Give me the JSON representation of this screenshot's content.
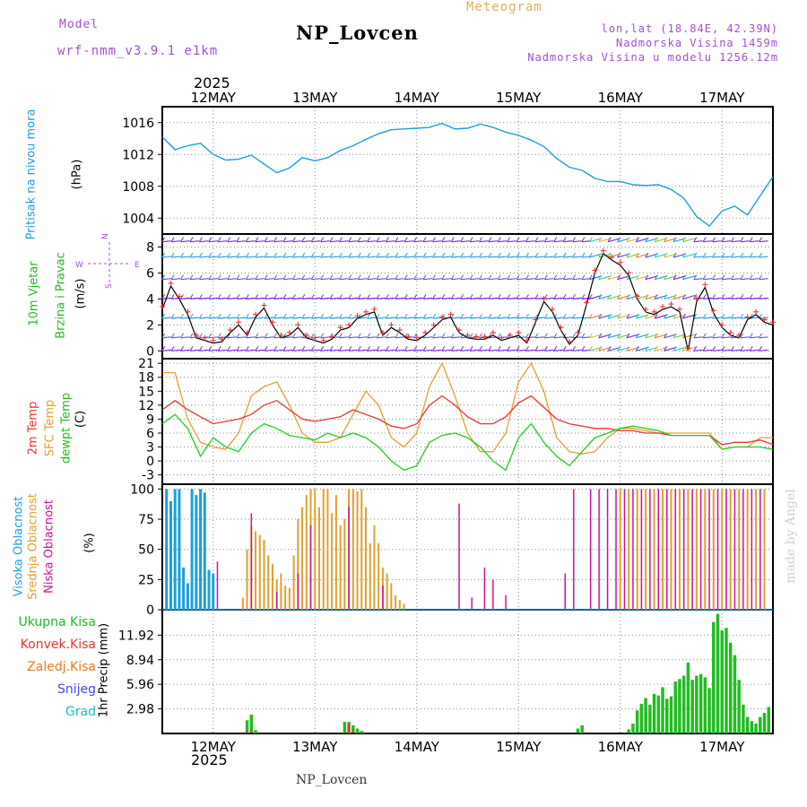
{
  "header": {
    "model_label": "Model",
    "model_name": "wrf-nmm_v3.9.1 e1km",
    "title": "NP_Lovcen",
    "meteogram_label": "Meteogram",
    "coords": "lon,lat (18.84E, 42.39N)",
    "altitude": "Nadmorska Visina 1459m",
    "model_altitude": "Nadmorska Visina u modelu 1256.12m",
    "year_top": "2025",
    "year_bottom": "2025",
    "footer_name": "NP_Lovcen",
    "watermark": "made by Angel"
  },
  "colors": {
    "pressure": "#1a9fe0",
    "wind_label": "#22bb22",
    "temp2m": "#ee3333",
    "sfc": "#e0a030",
    "dewpt": "#22cc22",
    "high_cloud": "#1a9fe0",
    "mid_cloud": "#e0a030",
    "low_cloud": "#cc1199",
    "total_precip": "#22bb22",
    "conv_precip": "#ee3333",
    "frz_precip": "#ee7722",
    "snow": "#4444ee",
    "hail": "#22bbbb",
    "purple_text": "#a050d0",
    "orange_text": "#e0b060"
  },
  "chart_data": [
    {
      "type": "line",
      "panel": "pressure",
      "ylabel_main": "Pritisak na nivou mora",
      "unit": "(hPa)",
      "ylim": [
        1002,
        1018
      ],
      "yticks": [
        1004,
        1008,
        1012,
        1016
      ],
      "xlim": [
        0,
        144
      ],
      "x_tick_labels": [
        "12MAY",
        "13MAY",
        "14MAY",
        "15MAY",
        "16MAY",
        "17MAY"
      ],
      "x_tick_hours": [
        12,
        36,
        60,
        84,
        108,
        132
      ],
      "series": [
        {
          "key": "pressure",
          "x": [
            0,
            3,
            6,
            9,
            12,
            15,
            18,
            21,
            24,
            27,
            30,
            33,
            36,
            39,
            42,
            45,
            48,
            51,
            54,
            57,
            60,
            63,
            66,
            69,
            72,
            75,
            78,
            81,
            84,
            87,
            90,
            93,
            96,
            99,
            102,
            105,
            108,
            111,
            114,
            117,
            120,
            123,
            126,
            129,
            132,
            135,
            138,
            141,
            144
          ],
          "values": [
            1014.2,
            1012.6,
            1013.1,
            1013.4,
            1012.0,
            1011.3,
            1011.4,
            1011.9,
            1010.8,
            1009.7,
            1010.3,
            1011.6,
            1011.2,
            1011.6,
            1012.5,
            1013.1,
            1013.9,
            1014.6,
            1015.1,
            1015.2,
            1015.3,
            1015.4,
            1015.9,
            1015.2,
            1015.3,
            1015.8,
            1015.4,
            1014.8,
            1014.4,
            1013.8,
            1013.0,
            1011.5,
            1010.4,
            1010.0,
            1009.0,
            1008.6,
            1008.6,
            1008.2,
            1008.1,
            1008.2,
            1007.6,
            1006.5,
            1004.2,
            1003.0,
            1004.9,
            1005.5,
            1004.4,
            1006.8,
            1009.2
          ]
        }
      ]
    },
    {
      "type": "line",
      "panel": "wind",
      "ylabel_main": "10m Vjetar",
      "ylabel_sub": "Brzina i Pravac",
      "unit": "(m/s)",
      "compass": [
        "N",
        "W",
        "E",
        "S"
      ],
      "ylim": [
        -0.6,
        9
      ],
      "yticks": [
        0,
        2,
        4,
        6,
        8
      ],
      "xlim": [
        0,
        144
      ],
      "barb_rows": [
        0,
        1,
        2.5,
        4,
        5.5,
        7.2,
        8.4
      ],
      "series": [
        {
          "key": "speed",
          "x": [
            0,
            2,
            4,
            6,
            8,
            10,
            12,
            14,
            16,
            18,
            20,
            22,
            24,
            26,
            28,
            30,
            32,
            34,
            36,
            38,
            40,
            42,
            44,
            46,
            48,
            50,
            52,
            54,
            56,
            58,
            60,
            62,
            64,
            66,
            68,
            70,
            72,
            74,
            76,
            78,
            80,
            82,
            84,
            86,
            88,
            90,
            92,
            94,
            96,
            98,
            100,
            102,
            104,
            106,
            108,
            110,
            112,
            114,
            116,
            118,
            120,
            122,
            124,
            126,
            128,
            130,
            132,
            134,
            136,
            138,
            140,
            142,
            144
          ],
          "values": [
            3.2,
            5.0,
            4.0,
            2.8,
            1.0,
            0.8,
            0.6,
            0.7,
            1.4,
            2.0,
            1.2,
            2.6,
            3.3,
            2.0,
            1.0,
            1.2,
            1.8,
            1.0,
            0.8,
            0.6,
            0.9,
            1.6,
            1.8,
            2.5,
            2.8,
            3.0,
            1.2,
            1.8,
            1.4,
            0.9,
            0.8,
            1.2,
            1.8,
            2.4,
            2.6,
            1.4,
            1.0,
            0.9,
            0.9,
            1.2,
            0.8,
            1.0,
            1.2,
            0.6,
            2.2,
            3.8,
            3.0,
            1.6,
            0.5,
            1.2,
            3.5,
            6.0,
            7.5,
            7.0,
            6.6,
            5.8,
            4.0,
            3.0,
            2.8,
            3.2,
            3.4,
            3.0,
            0.0,
            3.8,
            4.9,
            2.9,
            1.8,
            1.2,
            1.0,
            2.4,
            2.8,
            2.2,
            2.0
          ]
        }
      ]
    },
    {
      "type": "line",
      "panel": "temperature",
      "ylabels": [
        "2m Temp",
        "SFC Temp",
        "dewpt Temp"
      ],
      "unit": "(C)",
      "ylim": [
        -5,
        22
      ],
      "yticks": [
        -3,
        0,
        3,
        6,
        9,
        12,
        15,
        18,
        21
      ],
      "xlim": [
        0,
        144
      ],
      "series": [
        {
          "key": "temp2m",
          "x": [
            0,
            3,
            6,
            9,
            12,
            15,
            18,
            21,
            24,
            27,
            30,
            33,
            36,
            39,
            42,
            45,
            48,
            51,
            54,
            57,
            60,
            63,
            66,
            69,
            72,
            75,
            78,
            81,
            84,
            87,
            90,
            93,
            96,
            99,
            102,
            105,
            108,
            111,
            114,
            117,
            120,
            123,
            126,
            129,
            132,
            135,
            138,
            141,
            144
          ],
          "values": [
            11,
            13,
            11,
            9.5,
            8,
            8.5,
            9,
            10,
            12,
            13,
            11,
            9,
            8.5,
            9,
            9.5,
            11,
            10,
            9,
            7.5,
            7,
            8,
            12,
            14,
            12,
            9.5,
            8,
            8,
            9.5,
            12.5,
            14,
            11.5,
            9,
            8,
            7.5,
            7,
            7,
            6.5,
            6.5,
            6,
            6,
            5.5,
            5.5,
            5.5,
            5.5,
            3.5,
            4,
            4,
            4.5,
            3.5
          ]
        },
        {
          "key": "sfc",
          "x": [
            0,
            3,
            6,
            9,
            12,
            15,
            18,
            21,
            24,
            27,
            30,
            33,
            36,
            39,
            42,
            45,
            48,
            51,
            54,
            57,
            60,
            63,
            66,
            69,
            72,
            75,
            78,
            81,
            84,
            87,
            90,
            93,
            96,
            99,
            102,
            105,
            108,
            111,
            114,
            117,
            120,
            123,
            126,
            129,
            132,
            135,
            138,
            141,
            144
          ],
          "values": [
            19,
            19,
            9,
            4,
            3,
            2.5,
            6,
            14,
            16,
            17,
            12,
            6,
            4,
            4,
            5,
            10,
            15,
            12,
            5,
            3,
            6,
            16,
            21,
            14,
            6,
            2,
            2,
            6,
            17,
            21,
            15,
            5,
            2,
            1.5,
            2,
            5,
            7,
            7,
            6.5,
            6,
            6,
            6,
            6,
            6,
            2.5,
            3,
            3,
            5,
            5
          ]
        },
        {
          "key": "dewpt",
          "x": [
            0,
            3,
            6,
            9,
            12,
            15,
            18,
            21,
            24,
            27,
            30,
            33,
            36,
            39,
            42,
            45,
            48,
            51,
            54,
            57,
            60,
            63,
            66,
            69,
            72,
            75,
            78,
            81,
            84,
            87,
            90,
            93,
            96,
            99,
            102,
            105,
            108,
            111,
            114,
            117,
            120,
            123,
            126,
            129,
            132,
            135,
            138,
            141,
            144
          ],
          "values": [
            8,
            10,
            7,
            1,
            5,
            3,
            2,
            6,
            8,
            7,
            5.5,
            5,
            4.5,
            6,
            5,
            6,
            5,
            3,
            0,
            -2,
            -1,
            4,
            5.5,
            6,
            5,
            3,
            0,
            -2,
            5,
            8,
            4,
            1,
            -1,
            2,
            5,
            6,
            7,
            7.5,
            7,
            6.5,
            5.5,
            5.5,
            5.5,
            5.5,
            2.5,
            3,
            3,
            3,
            2.5
          ]
        }
      ]
    },
    {
      "type": "bar",
      "panel": "clouds",
      "ylabels": [
        "Visoka Oblacnost",
        "Srednja Oblacnost",
        "Niska Oblacnost"
      ],
      "unit": "(%)",
      "ylim": [
        0,
        104
      ],
      "yticks": [
        0,
        25,
        50,
        75,
        100
      ],
      "xlim": [
        0,
        144
      ],
      "series": [
        {
          "key": "high_cloud",
          "x": [
            1,
            2,
            3,
            4,
            5,
            6,
            7,
            8,
            9,
            10,
            11,
            12
          ],
          "values": [
            100,
            90,
            100,
            100,
            35,
            22,
            100,
            95,
            100,
            97,
            33,
            30
          ]
        },
        {
          "key": "mid_cloud",
          "x": [
            19,
            20,
            21,
            22,
            23,
            24,
            25,
            26,
            27,
            28,
            29,
            30,
            31,
            32,
            33,
            34,
            35,
            36,
            37,
            38,
            39,
            40,
            41,
            42,
            43,
            44,
            45,
            46,
            47,
            48,
            49,
            50,
            51,
            52,
            53,
            54,
            55,
            56,
            57,
            108,
            110,
            112,
            114,
            116,
            118,
            120,
            122,
            124,
            126,
            128,
            130,
            132,
            134,
            136,
            138,
            140,
            142
          ],
          "values": [
            10,
            50,
            70,
            65,
            62,
            58,
            45,
            38,
            25,
            30,
            20,
            18,
            45,
            75,
            85,
            95,
            100,
            100,
            85,
            100,
            100,
            80,
            95,
            70,
            75,
            100,
            100,
            98,
            100,
            85,
            55,
            70,
            55,
            35,
            30,
            22,
            12,
            8,
            5,
            100,
            100,
            100,
            100,
            100,
            100,
            100,
            100,
            100,
            100,
            100,
            100,
            100,
            100,
            100,
            100,
            100,
            100
          ]
        },
        {
          "key": "low_cloud",
          "x": [
            13,
            21,
            27,
            32,
            35,
            44,
            52,
            70,
            73,
            76,
            78,
            81,
            95,
            97,
            101,
            103,
            105,
            107,
            109,
            111,
            113,
            115,
            117,
            119,
            121,
            123,
            125,
            127,
            129,
            131,
            133,
            135,
            137,
            139,
            141
          ],
          "values": [
            40,
            80,
            15,
            30,
            70,
            85,
            20,
            88,
            10,
            35,
            25,
            12,
            30,
            100,
            100,
            100,
            100,
            100,
            100,
            100,
            100,
            100,
            100,
            100,
            100,
            100,
            100,
            100,
            100,
            100,
            100,
            100,
            100,
            100,
            100
          ]
        }
      ]
    },
    {
      "type": "bar",
      "panel": "precip",
      "ylabels": [
        "Ukupna Kisa",
        "Konvek.Kisa",
        "Zaledj.Kisa",
        "Snijeg",
        "Grad"
      ],
      "unit": "1hr Precip (mm)",
      "ylim": [
        0,
        15
      ],
      "yticks": [
        2.98,
        5.96,
        8.94,
        11.92
      ],
      "xlim": [
        0,
        144
      ],
      "x_tick_labels": [
        "12MAY",
        "13MAY",
        "14MAY",
        "15MAY",
        "16MAY",
        "17MAY"
      ],
      "series": [
        {
          "key": "total_precip",
          "x": [
            20,
            21,
            22,
            43,
            44,
            45,
            46,
            47,
            98,
            99,
            110,
            111,
            112,
            113,
            114,
            115,
            116,
            117,
            118,
            119,
            120,
            121,
            122,
            123,
            124,
            125,
            126,
            127,
            128,
            129,
            130,
            131,
            132,
            133,
            134,
            135,
            136,
            137,
            138,
            139,
            140,
            141,
            142,
            143
          ],
          "values": [
            1.6,
            2.3,
            0.4,
            1.4,
            1.4,
            1.0,
            0.6,
            0.3,
            0.6,
            1.0,
            0.5,
            1.2,
            2.8,
            3.6,
            4.3,
            3.5,
            4.8,
            4.6,
            5.6,
            4.2,
            4.5,
            6.3,
            6.6,
            7.0,
            8.6,
            6.5,
            7.0,
            7.2,
            6.8,
            5.5,
            13.5,
            14.5,
            12.5,
            12.8,
            11.0,
            9.5,
            6.5,
            3.5,
            2.0,
            1.5,
            1.2,
            2.0,
            2.5,
            3.2
          ]
        },
        {
          "key": "conv_precip",
          "x": [
            20,
            21,
            44,
            45
          ],
          "values": [
            0.3,
            0.4,
            1.2,
            0.5
          ]
        }
      ]
    }
  ]
}
